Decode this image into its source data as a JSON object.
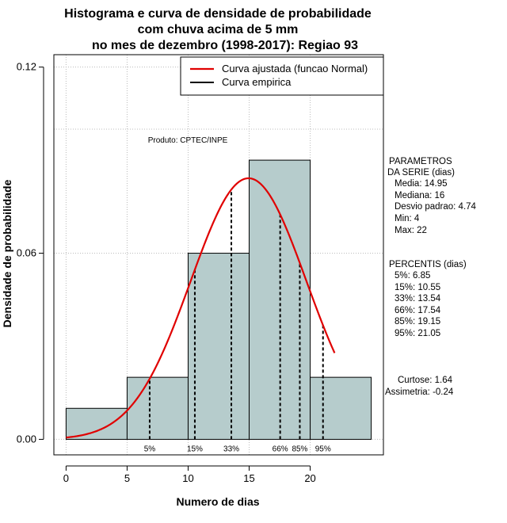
{
  "chart_data": {
    "type": "bar",
    "title_lines": [
      "Histograma e curva de densidade de probabilidade",
      "com chuva acima de 5 mm",
      "no mes de dezembro (1998-2017): Regiao 93"
    ],
    "xlabel": "Numero de dias",
    "ylabel": "Densidade de probabilidade",
    "xlim": [
      -1,
      26
    ],
    "ylim": [
      -0.005,
      0.124
    ],
    "x_ticks": [
      0,
      5,
      10,
      15,
      20
    ],
    "x_tick_labels": [
      "0",
      "5",
      "10",
      "15",
      "20"
    ],
    "y_ticks": [
      0.0,
      0.06,
      0.12
    ],
    "y_tick_labels": [
      "0.00",
      "0.06",
      "0.12"
    ],
    "grid_x": [
      0,
      5,
      10,
      15,
      20
    ],
    "grid_y": [
      0.0,
      0.06,
      0.1,
      0.12
    ],
    "bins": [
      {
        "x0": 0,
        "x1": 5,
        "density": 0.01
      },
      {
        "x0": 5,
        "x1": 10,
        "density": 0.02
      },
      {
        "x0": 10,
        "x1": 15,
        "density": 0.06
      },
      {
        "x0": 15,
        "x1": 20,
        "density": 0.09
      },
      {
        "x0": 20,
        "x1": 25,
        "density": 0.02
      }
    ],
    "bar_color": "#b6cccc",
    "normal_curve": {
      "name": "Curva ajustada (funcao Normal)",
      "mean": 14.95,
      "sd": 4.74,
      "x_from": 0,
      "x_to": 22,
      "color": "#e00000"
    },
    "empirical_curve": {
      "name": "Curva empirica",
      "color": "#000000"
    },
    "percentiles": [
      {
        "label": "5%",
        "x": 6.85
      },
      {
        "label": "15%",
        "x": 10.55
      },
      {
        "label": "33%",
        "x": 13.54
      },
      {
        "label": "66%",
        "x": 17.54
      },
      {
        "label": "85%",
        "x": 19.15
      },
      {
        "label": "95%",
        "x": 21.05
      }
    ],
    "legend": {
      "position": "top-right",
      "entries": [
        "Curva ajustada (funcao Normal)",
        "Curva empirica"
      ]
    },
    "annotation": "Produto: CPTEC/INPE",
    "parametros": {
      "header": [
        "PARAMETROS",
        "DA SERIE (dias)"
      ],
      "lines": [
        "Media: 14.95",
        "Mediana: 16",
        "Desvio padrao: 4.74",
        "Min: 4",
        "Max: 22"
      ]
    },
    "percentis_panel": {
      "header": "PERCENTIS (dias)",
      "lines": [
        "5%: 6.85",
        "15%: 10.55",
        "33%: 13.54",
        "66%: 17.54",
        "85%: 19.15",
        "95%: 21.05"
      ]
    },
    "shape_stats": {
      "lines": [
        "Curtose: 1.64",
        "Assimetria: -0.24"
      ]
    }
  }
}
